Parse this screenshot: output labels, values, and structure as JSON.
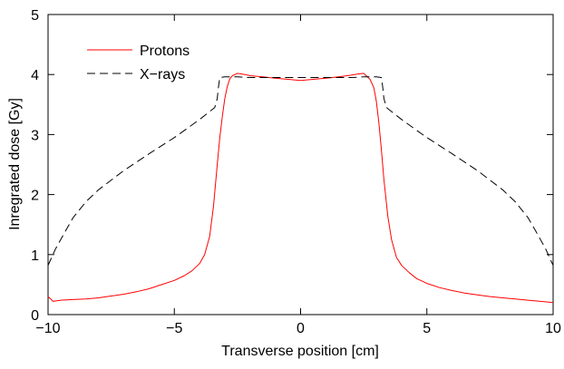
{
  "chart_data": {
    "type": "line",
    "title": "",
    "xlabel": "Transverse position [cm]",
    "ylabel": "Inregrated dose [Gy]",
    "xlim": [
      -10,
      10
    ],
    "ylim": [
      0,
      5
    ],
    "xticks": [
      -10,
      -5,
      0,
      5,
      10
    ],
    "yticks": [
      0,
      1,
      2,
      3,
      4,
      5
    ],
    "xtick_labels": [
      "−10",
      "−5",
      "0",
      "5",
      "10"
    ],
    "ytick_labels": [
      "0",
      "1",
      "2",
      "3",
      "4",
      "5"
    ],
    "grid": false,
    "legend_position": "top-left",
    "series": [
      {
        "name": "Protons",
        "color": "#ff0000",
        "dash": "solid",
        "x": [
          -10,
          -9.8,
          -9.5,
          -9,
          -8.5,
          -8,
          -7.5,
          -7,
          -6.5,
          -6,
          -5.5,
          -5,
          -4.6,
          -4.3,
          -4,
          -3.8,
          -3.6,
          -3.45,
          -3.3,
          -3.2,
          -3.1,
          -3.0,
          -2.9,
          -2.8,
          -2.7,
          -2.5,
          -2.2,
          -2,
          -1.5,
          -1,
          -0.5,
          0,
          0.5,
          1,
          1.5,
          2,
          2.3,
          2.5,
          2.6,
          2.75,
          2.9,
          3.0,
          3.1,
          3.2,
          3.3,
          3.45,
          3.6,
          3.8,
          4,
          4.3,
          4.6,
          5,
          5.5,
          6,
          6.5,
          7,
          7.5,
          8,
          8.5,
          9,
          9.5,
          9.8,
          10
        ],
        "y": [
          0.3,
          0.22,
          0.24,
          0.25,
          0.26,
          0.28,
          0.31,
          0.34,
          0.38,
          0.43,
          0.5,
          0.57,
          0.65,
          0.73,
          0.85,
          1.0,
          1.3,
          1.8,
          2.5,
          2.95,
          3.3,
          3.6,
          3.8,
          3.93,
          3.98,
          4.02,
          4.0,
          3.98,
          3.96,
          3.94,
          3.92,
          3.9,
          3.92,
          3.94,
          3.96,
          3.99,
          4.01,
          4.02,
          3.98,
          3.92,
          3.78,
          3.55,
          3.2,
          2.75,
          2.25,
          1.65,
          1.25,
          0.95,
          0.82,
          0.7,
          0.6,
          0.52,
          0.45,
          0.4,
          0.36,
          0.33,
          0.3,
          0.28,
          0.26,
          0.24,
          0.22,
          0.21,
          0.2
        ]
      },
      {
        "name": "X−rays",
        "color": "#000000",
        "dash": "dashed",
        "x": [
          -10,
          -9.7,
          -9.3,
          -9,
          -8.5,
          -8,
          -7,
          -6,
          -5,
          -4.5,
          -4,
          -3.7,
          -3.4,
          -3.3,
          -3.25,
          -3.2,
          -3,
          -2.5,
          -2,
          -1,
          0,
          1,
          2,
          2.5,
          3,
          3.2,
          3.25,
          3.3,
          3.4,
          3.7,
          4,
          4.5,
          5,
          6,
          7,
          8,
          8.5,
          9,
          9.3,
          9.7,
          10
        ],
        "y": [
          0.82,
          1.1,
          1.4,
          1.62,
          1.88,
          2.08,
          2.4,
          2.68,
          2.95,
          3.1,
          3.25,
          3.35,
          3.45,
          3.6,
          3.8,
          3.95,
          3.96,
          3.96,
          3.95,
          3.95,
          3.95,
          3.95,
          3.95,
          3.96,
          3.96,
          3.95,
          3.8,
          3.6,
          3.45,
          3.35,
          3.25,
          3.1,
          2.95,
          2.68,
          2.4,
          2.08,
          1.88,
          1.62,
          1.4,
          1.1,
          0.82
        ]
      }
    ]
  }
}
